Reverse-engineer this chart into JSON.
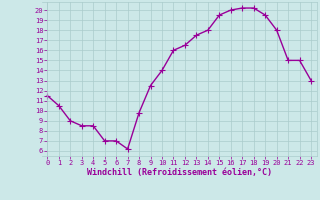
{
  "x": [
    0,
    1,
    2,
    3,
    4,
    5,
    6,
    7,
    8,
    9,
    10,
    11,
    12,
    13,
    14,
    15,
    16,
    17,
    18,
    19,
    20,
    21,
    22,
    23
  ],
  "y": [
    11.5,
    10.5,
    9.0,
    8.5,
    8.5,
    7.0,
    7.0,
    6.2,
    9.8,
    12.5,
    14.0,
    16.0,
    16.5,
    17.5,
    18.0,
    19.5,
    20.0,
    20.2,
    20.2,
    19.5,
    18.0,
    15.0,
    15.0,
    13.0
  ],
  "line_color": "#990099",
  "marker": "+",
  "markersize": 4,
  "linewidth": 1.0,
  "xlabel": "Windchill (Refroidissement éolien,°C)",
  "ylabel": "",
  "xlim": [
    -0.5,
    23.5
  ],
  "ylim": [
    5.5,
    20.8
  ],
  "yticks": [
    6,
    7,
    8,
    9,
    10,
    11,
    12,
    13,
    14,
    15,
    16,
    17,
    18,
    19,
    20
  ],
  "xticks": [
    0,
    1,
    2,
    3,
    4,
    5,
    6,
    7,
    8,
    9,
    10,
    11,
    12,
    13,
    14,
    15,
    16,
    17,
    18,
    19,
    20,
    21,
    22,
    23
  ],
  "bg_color": "#cce8e8",
  "grid_color": "#aacccc",
  "line_style": "-",
  "tick_color": "#990099",
  "label_color": "#990099",
  "tick_fontsize": 5.0,
  "xlabel_fontsize": 6.0
}
